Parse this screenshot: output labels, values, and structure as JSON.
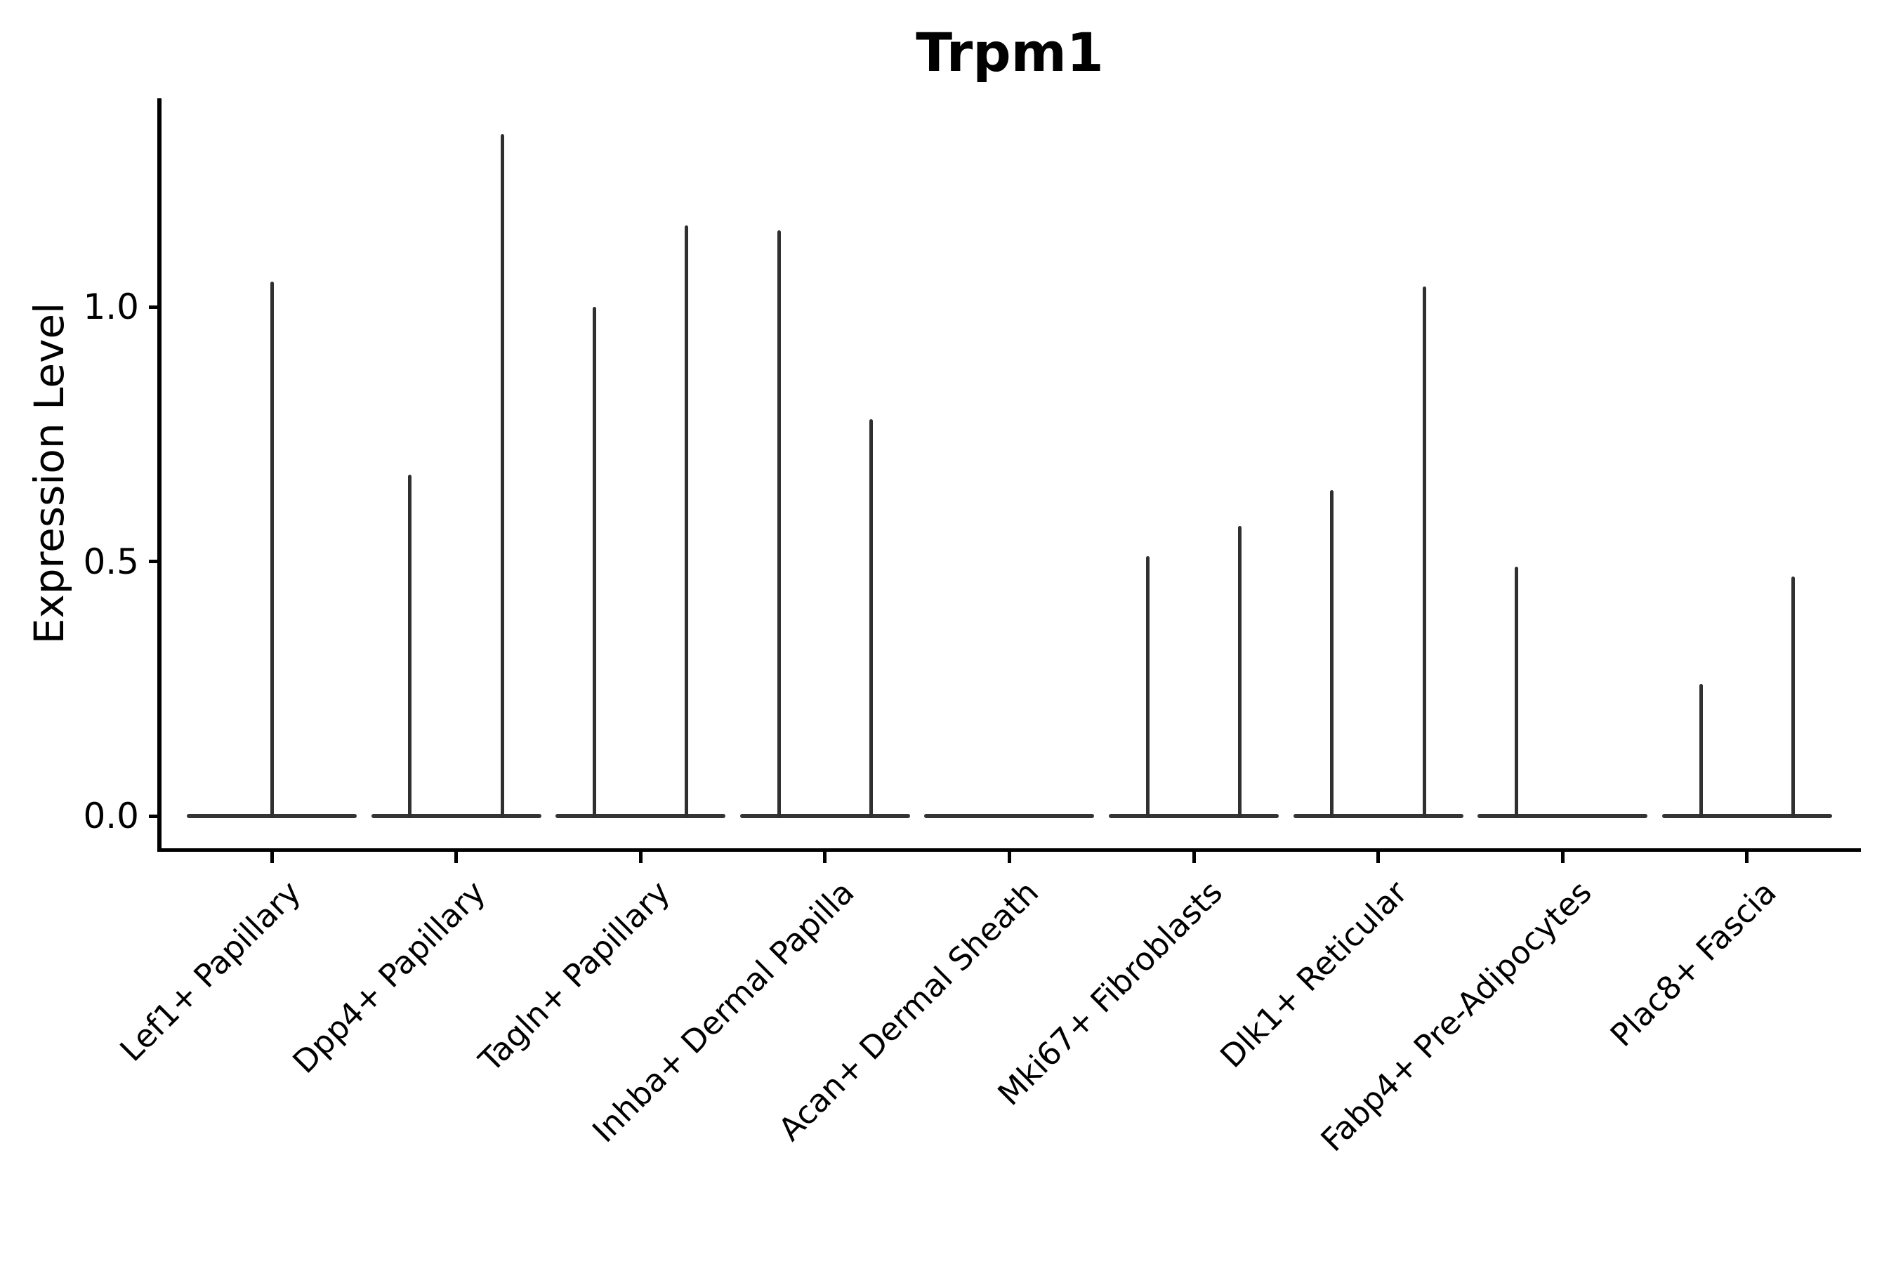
{
  "title": "Trpm1",
  "y_axis": {
    "label": "Expression Level",
    "ticks": [
      "0.0",
      "0.5",
      "1.0"
    ]
  },
  "colors": {
    "background": "#ffffff",
    "axis": "#000000",
    "text": "#000000",
    "violin": "#303030"
  },
  "chart_data": {
    "type": "violin",
    "title": "Trpm1",
    "xlabel": "",
    "ylabel": "Expression Level",
    "ylim": [
      -0.07,
      1.41
    ],
    "ytick_values": [
      0.0,
      0.5,
      1.0
    ],
    "grid": false,
    "legend": "none",
    "description": "Violin plot of Trpm1 expression; most cells at 0 give each violin a wide flat base with a thin spike reaching the maximum expression value. Categories with two violins show left/right group spikes.",
    "categories": [
      {
        "label": "Lef1+ Papillary",
        "violins": [
          {
            "position": "center",
            "max": 1.05
          }
        ]
      },
      {
        "label": "Dpp4+ Papillary",
        "violins": [
          {
            "position": "left",
            "max": 0.67
          },
          {
            "position": "right",
            "max": 1.34
          }
        ]
      },
      {
        "label": "Tagln+ Papillary",
        "violins": [
          {
            "position": "left",
            "max": 1.0
          },
          {
            "position": "right",
            "max": 1.16
          }
        ]
      },
      {
        "label": "Inhba+ Dermal Papilla",
        "violins": [
          {
            "position": "left",
            "max": 1.15
          },
          {
            "position": "right",
            "max": 0.78
          }
        ]
      },
      {
        "label": "Acan+ Dermal Sheath",
        "violins": []
      },
      {
        "label": "Mki67+ Fibroblasts",
        "violins": [
          {
            "position": "left",
            "max": 0.51
          },
          {
            "position": "right",
            "max": 0.57
          }
        ]
      },
      {
        "label": "Dlk1+ Reticular",
        "violins": [
          {
            "position": "left",
            "max": 0.64
          },
          {
            "position": "right",
            "max": 1.04
          }
        ]
      },
      {
        "label": "Fabp4+ Pre-Adipocytes",
        "violins": [
          {
            "position": "left",
            "max": 0.49
          }
        ]
      },
      {
        "label": "Plac8+ Fascia",
        "violins": [
          {
            "position": "left",
            "max": 0.26
          },
          {
            "position": "right",
            "max": 0.47
          }
        ]
      }
    ]
  }
}
